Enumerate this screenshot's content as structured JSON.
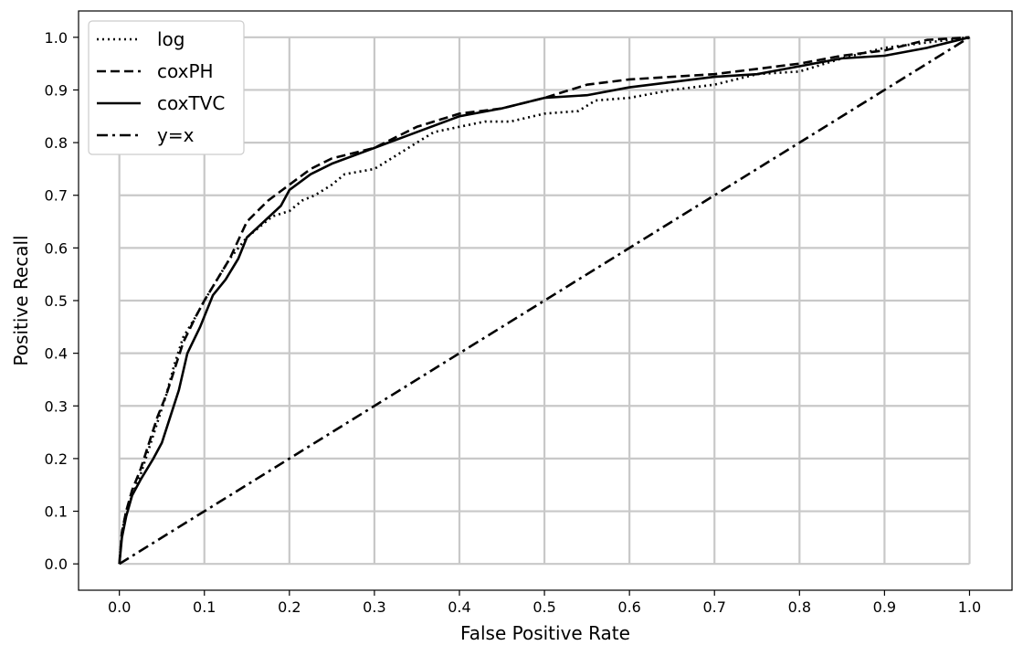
{
  "chart_data": {
    "type": "line",
    "title": "",
    "xlabel": "False Positive Rate",
    "ylabel": "Positive Recall",
    "xlim": [
      -0.048,
      1.05
    ],
    "ylim": [
      -0.05,
      1.05
    ],
    "xticks": [
      "0.0",
      "0.1",
      "0.2",
      "0.3",
      "0.4",
      "0.5",
      "0.6",
      "0.7",
      "0.8",
      "0.9",
      "1.0"
    ],
    "yticks": [
      "0.0",
      "0.1",
      "0.2",
      "0.3",
      "0.4",
      "0.5",
      "0.6",
      "0.7",
      "0.8",
      "0.9",
      "1.0"
    ],
    "grid": true,
    "legend_position": "top-left",
    "series": [
      {
        "name": "log",
        "style": "dotted",
        "color": "#000000",
        "points": [
          [
            0,
            0
          ],
          [
            0.003,
            0.06
          ],
          [
            0.008,
            0.1
          ],
          [
            0.015,
            0.13
          ],
          [
            0.025,
            0.17
          ],
          [
            0.035,
            0.22
          ],
          [
            0.045,
            0.27
          ],
          [
            0.055,
            0.32
          ],
          [
            0.065,
            0.38
          ],
          [
            0.075,
            0.43
          ],
          [
            0.09,
            0.47
          ],
          [
            0.1,
            0.5
          ],
          [
            0.115,
            0.54
          ],
          [
            0.13,
            0.58
          ],
          [
            0.14,
            0.6
          ],
          [
            0.15,
            0.62
          ],
          [
            0.165,
            0.64
          ],
          [
            0.18,
            0.66
          ],
          [
            0.2,
            0.67
          ],
          [
            0.215,
            0.69
          ],
          [
            0.23,
            0.7
          ],
          [
            0.25,
            0.72
          ],
          [
            0.265,
            0.74
          ],
          [
            0.3,
            0.75
          ],
          [
            0.33,
            0.78
          ],
          [
            0.37,
            0.82
          ],
          [
            0.4,
            0.83
          ],
          [
            0.43,
            0.84
          ],
          [
            0.46,
            0.84
          ],
          [
            0.5,
            0.855
          ],
          [
            0.54,
            0.86
          ],
          [
            0.56,
            0.88
          ],
          [
            0.6,
            0.885
          ],
          [
            0.65,
            0.9
          ],
          [
            0.7,
            0.91
          ],
          [
            0.75,
            0.93
          ],
          [
            0.8,
            0.935
          ],
          [
            0.85,
            0.96
          ],
          [
            0.9,
            0.98
          ],
          [
            0.95,
            0.99
          ],
          [
            1.0,
            1.0
          ]
        ]
      },
      {
        "name": "coxPH",
        "style": "dashed",
        "color": "#000000",
        "points": [
          [
            0,
            0
          ],
          [
            0.003,
            0.06
          ],
          [
            0.008,
            0.1
          ],
          [
            0.015,
            0.14
          ],
          [
            0.025,
            0.18
          ],
          [
            0.035,
            0.23
          ],
          [
            0.045,
            0.28
          ],
          [
            0.055,
            0.32
          ],
          [
            0.065,
            0.37
          ],
          [
            0.075,
            0.42
          ],
          [
            0.09,
            0.47
          ],
          [
            0.1,
            0.5
          ],
          [
            0.115,
            0.54
          ],
          [
            0.13,
            0.58
          ],
          [
            0.15,
            0.65
          ],
          [
            0.175,
            0.69
          ],
          [
            0.2,
            0.72
          ],
          [
            0.225,
            0.75
          ],
          [
            0.25,
            0.77
          ],
          [
            0.3,
            0.79
          ],
          [
            0.35,
            0.83
          ],
          [
            0.4,
            0.855
          ],
          [
            0.45,
            0.865
          ],
          [
            0.5,
            0.885
          ],
          [
            0.55,
            0.91
          ],
          [
            0.6,
            0.92
          ],
          [
            0.65,
            0.925
          ],
          [
            0.7,
            0.93
          ],
          [
            0.75,
            0.94
          ],
          [
            0.8,
            0.95
          ],
          [
            0.85,
            0.965
          ],
          [
            0.9,
            0.975
          ],
          [
            0.95,
            0.995
          ],
          [
            1.0,
            1.0
          ]
        ]
      },
      {
        "name": "coxTVC",
        "style": "solid",
        "color": "#000000",
        "points": [
          [
            0,
            0
          ],
          [
            0.003,
            0.05
          ],
          [
            0.008,
            0.09
          ],
          [
            0.015,
            0.13
          ],
          [
            0.025,
            0.16
          ],
          [
            0.04,
            0.2
          ],
          [
            0.05,
            0.23
          ],
          [
            0.06,
            0.28
          ],
          [
            0.07,
            0.33
          ],
          [
            0.08,
            0.4
          ],
          [
            0.095,
            0.45
          ],
          [
            0.11,
            0.51
          ],
          [
            0.125,
            0.54
          ],
          [
            0.14,
            0.58
          ],
          [
            0.15,
            0.62
          ],
          [
            0.17,
            0.65
          ],
          [
            0.19,
            0.68
          ],
          [
            0.2,
            0.71
          ],
          [
            0.225,
            0.74
          ],
          [
            0.25,
            0.76
          ],
          [
            0.3,
            0.79
          ],
          [
            0.35,
            0.82
          ],
          [
            0.4,
            0.85
          ],
          [
            0.45,
            0.865
          ],
          [
            0.5,
            0.885
          ],
          [
            0.55,
            0.89
          ],
          [
            0.6,
            0.905
          ],
          [
            0.65,
            0.915
          ],
          [
            0.7,
            0.925
          ],
          [
            0.75,
            0.93
          ],
          [
            0.8,
            0.945
          ],
          [
            0.85,
            0.96
          ],
          [
            0.9,
            0.965
          ],
          [
            0.95,
            0.98
          ],
          [
            1.0,
            1.0
          ]
        ]
      },
      {
        "name": "y=x",
        "style": "dashdot",
        "color": "#000000",
        "points": [
          [
            0,
            0
          ],
          [
            1,
            1
          ]
        ]
      }
    ]
  }
}
